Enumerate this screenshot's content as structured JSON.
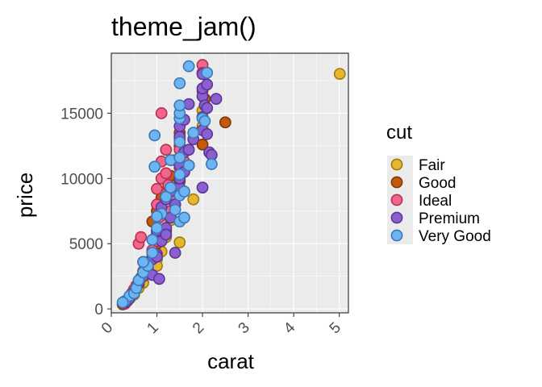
{
  "chart_data": {
    "type": "scatter",
    "title": "theme_jam()",
    "xlabel": "carat",
    "ylabel": "price",
    "xlim": [
      0,
      5.2
    ],
    "ylim": [
      -300,
      19600
    ],
    "x_ticks": [
      0,
      1,
      2,
      3,
      4,
      5
    ],
    "y_ticks": [
      0,
      5000,
      10000,
      15000
    ],
    "grid": true,
    "legend": {
      "title": "cut",
      "position": "right"
    },
    "colors": {
      "Fair": "#e6b62f",
      "Good": "#c4580c",
      "Ideal": "#f2668b",
      "Premium": "#8c5fd0",
      "Very Good": "#6db4f2"
    },
    "borders": {
      "Fair": "#9c7a10",
      "Good": "#7a3a05",
      "Ideal": "#b5304f",
      "Premium": "#5a3596",
      "Very Good": "#3a78b5"
    },
    "series": [
      {
        "name": "Fair",
        "points": [
          [
            5.01,
            18018
          ],
          [
            0.3,
            400
          ],
          [
            0.5,
            1100
          ],
          [
            0.7,
            2000
          ],
          [
            0.85,
            2900
          ],
          [
            0.9,
            4200
          ],
          [
            1.0,
            3800
          ],
          [
            1.1,
            4400
          ],
          [
            1.2,
            5500
          ],
          [
            1.5,
            5100
          ],
          [
            1.8,
            8400
          ],
          [
            2.0,
            14000
          ],
          [
            2.0,
            15200
          ],
          [
            0.6,
            1600
          ],
          [
            1.3,
            6800
          ],
          [
            0.4,
            800
          ],
          [
            1.0,
            3300
          ]
        ]
      },
      {
        "name": "Good",
        "points": [
          [
            0.25,
            350
          ],
          [
            0.35,
            600
          ],
          [
            0.5,
            1400
          ],
          [
            0.6,
            1900
          ],
          [
            0.7,
            2600
          ],
          [
            0.7,
            3600
          ],
          [
            0.8,
            3200
          ],
          [
            0.9,
            4000
          ],
          [
            0.9,
            6700
          ],
          [
            1.0,
            5000
          ],
          [
            1.0,
            7500
          ],
          [
            1.1,
            8500
          ],
          [
            1.2,
            9000
          ],
          [
            1.2,
            6000
          ],
          [
            1.3,
            10200
          ],
          [
            1.5,
            12500
          ],
          [
            1.5,
            13500
          ],
          [
            1.5,
            9800
          ],
          [
            2.0,
            12600
          ],
          [
            2.5,
            14300
          ],
          [
            1.7,
            11000
          ],
          [
            0.4,
            900
          ],
          [
            1.05,
            5800
          ],
          [
            2.05,
            16100
          ]
        ]
      },
      {
        "name": "Ideal",
        "points": [
          [
            0.3,
            500
          ],
          [
            0.35,
            700
          ],
          [
            0.4,
            900
          ],
          [
            0.45,
            1200
          ],
          [
            0.5,
            1500
          ],
          [
            0.55,
            1800
          ],
          [
            0.6,
            2100
          ],
          [
            0.65,
            2400
          ],
          [
            0.7,
            2900
          ],
          [
            0.75,
            3500
          ],
          [
            0.6,
            5000
          ],
          [
            0.65,
            5500
          ],
          [
            0.9,
            4500
          ],
          [
            1.0,
            5200
          ],
          [
            1.0,
            6000
          ],
          [
            1.0,
            8000
          ],
          [
            1.0,
            9200
          ],
          [
            1.05,
            7000
          ],
          [
            1.1,
            10000
          ],
          [
            1.1,
            11300
          ],
          [
            1.1,
            15000
          ],
          [
            1.2,
            8800
          ],
          [
            1.2,
            10400
          ],
          [
            1.2,
            12200
          ],
          [
            1.3,
            8500
          ],
          [
            1.3,
            7500
          ],
          [
            1.4,
            11400
          ],
          [
            1.5,
            10800
          ],
          [
            1.5,
            12200
          ],
          [
            1.5,
            13000
          ],
          [
            2.0,
            18700
          ],
          [
            2.0,
            18100
          ],
          [
            2.0,
            16700
          ],
          [
            1.6,
            11300
          ],
          [
            1.0,
            5800
          ],
          [
            0.8,
            3000
          ],
          [
            0.3,
            400
          ],
          [
            1.25,
            9500
          ]
        ]
      },
      {
        "name": "Premium",
        "points": [
          [
            0.3,
            500
          ],
          [
            0.4,
            800
          ],
          [
            0.5,
            1300
          ],
          [
            0.6,
            2000
          ],
          [
            0.7,
            2500
          ],
          [
            0.8,
            3100
          ],
          [
            0.9,
            3800
          ],
          [
            1.0,
            4200
          ],
          [
            1.0,
            6000
          ],
          [
            1.0,
            4000
          ],
          [
            1.1,
            5200
          ],
          [
            1.1,
            7800
          ],
          [
            1.2,
            6200
          ],
          [
            1.2,
            8400
          ],
          [
            1.3,
            9000
          ],
          [
            1.3,
            7000
          ],
          [
            1.4,
            4300
          ],
          [
            1.4,
            8000
          ],
          [
            1.5,
            9300
          ],
          [
            1.5,
            10000
          ],
          [
            1.5,
            11000
          ],
          [
            1.5,
            13200
          ],
          [
            1.5,
            14000
          ],
          [
            1.6,
            10500
          ],
          [
            1.6,
            12000
          ],
          [
            1.6,
            14500
          ],
          [
            1.7,
            12200
          ],
          [
            1.7,
            15700
          ],
          [
            1.8,
            13000
          ],
          [
            2.0,
            9300
          ],
          [
            2.0,
            13700
          ],
          [
            2.0,
            14700
          ],
          [
            2.0,
            16300
          ],
          [
            2.0,
            18000
          ],
          [
            2.0,
            16900
          ],
          [
            2.05,
            15600
          ],
          [
            2.1,
            15400
          ],
          [
            2.1,
            17200
          ],
          [
            2.1,
            13400
          ],
          [
            2.15,
            12000
          ],
          [
            2.2,
            11800
          ],
          [
            2.3,
            16100
          ],
          [
            1.2,
            5700
          ],
          [
            0.9,
            2600
          ],
          [
            1.05,
            2300
          ]
        ]
      },
      {
        "name": "Very Good",
        "points": [
          [
            0.3,
            600
          ],
          [
            0.4,
            1000
          ],
          [
            0.5,
            1200
          ],
          [
            0.55,
            1600
          ],
          [
            0.6,
            2200
          ],
          [
            0.7,
            2800
          ],
          [
            0.8,
            3300
          ],
          [
            0.9,
            4300
          ],
          [
            0.9,
            5300
          ],
          [
            0.95,
            10900
          ],
          [
            0.95,
            13300
          ],
          [
            1.0,
            6200
          ],
          [
            1.1,
            7300
          ],
          [
            1.2,
            8600
          ],
          [
            1.3,
            9300
          ],
          [
            1.3,
            11400
          ],
          [
            1.4,
            7600
          ],
          [
            1.5,
            6700
          ],
          [
            1.5,
            8700
          ],
          [
            1.5,
            10300
          ],
          [
            1.5,
            11600
          ],
          [
            1.5,
            12800
          ],
          [
            1.5,
            14600
          ],
          [
            1.5,
            15000
          ],
          [
            1.5,
            15600
          ],
          [
            1.5,
            17300
          ],
          [
            1.6,
            7000
          ],
          [
            1.6,
            9000
          ],
          [
            1.7,
            11000
          ],
          [
            1.7,
            18600
          ],
          [
            2.0,
            14600
          ],
          [
            2.05,
            14400
          ],
          [
            2.1,
            18100
          ],
          [
            2.2,
            11100
          ],
          [
            1.8,
            13500
          ],
          [
            0.25,
            500
          ],
          [
            0.7,
            3600
          ],
          [
            1.0,
            7100
          ]
        ]
      }
    ]
  }
}
